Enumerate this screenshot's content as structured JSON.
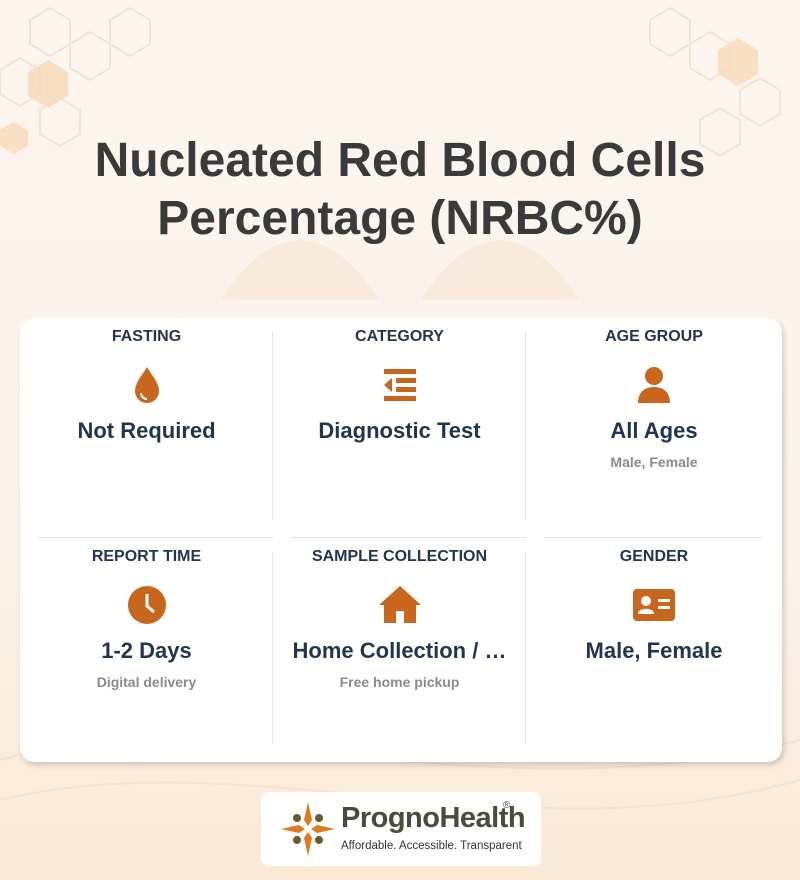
{
  "header": {
    "title": "Nucleated Red Blood Cells Percentage (NRBC%)"
  },
  "cards": [
    {
      "label": "FASTING",
      "value": "Not Required"
    },
    {
      "label": "CATEGORY",
      "value": "Diagnostic Test"
    },
    {
      "label": "AGE GROUP",
      "value": "All Ages",
      "note": "Male, Female"
    },
    {
      "label": "REPORT TIME",
      "value": "1-2 Days",
      "note": "Digital delivery"
    },
    {
      "label": "SAMPLE COLLECTION",
      "value": "Home Collection / …",
      "note": "Free home pickup"
    },
    {
      "label": "GENDER",
      "value": "Male, Female"
    }
  ],
  "logo": {
    "name": "PrognoHealth",
    "registered": "®",
    "tagline": "Affordable. Accessible. Transparent"
  }
}
